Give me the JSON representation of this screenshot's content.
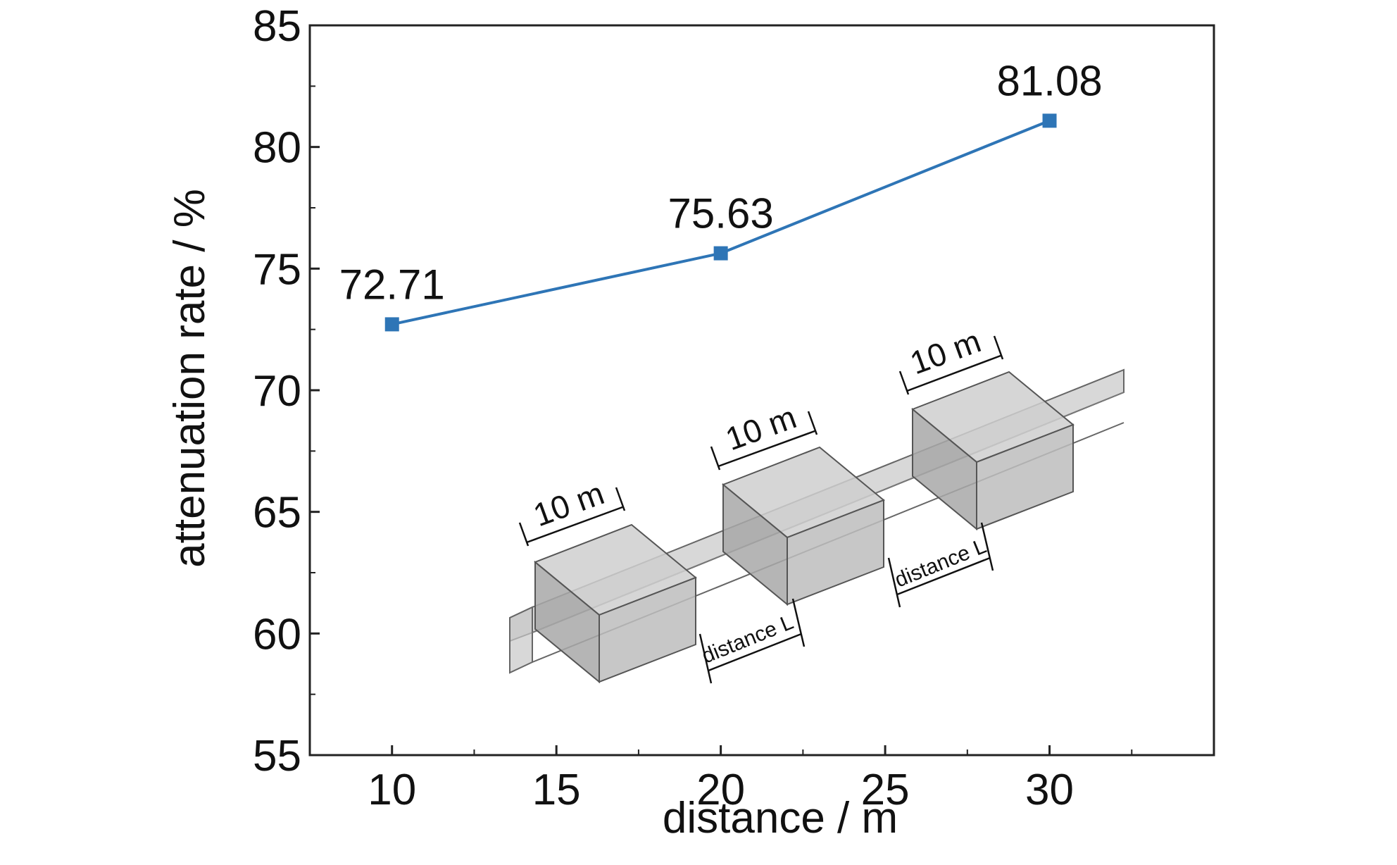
{
  "chart_data": {
    "type": "line",
    "xlabel": "distance / m",
    "ylabel": "attenuation rate / %",
    "xlim": [
      7.5,
      35
    ],
    "ylim": [
      55,
      85
    ],
    "x_ticks": [
      10,
      15,
      20,
      25,
      30
    ],
    "y_ticks": [
      55,
      60,
      65,
      70,
      75,
      80,
      85
    ],
    "grid": false,
    "series": [
      {
        "color": "#2e75b6",
        "marker": "square",
        "x": [
          10,
          20,
          30
        ],
        "y": [
          72.71,
          75.63,
          81.08
        ],
        "labels": [
          "72.71",
          "75.63",
          "81.08"
        ]
      }
    ],
    "inset": {
      "box_labels": [
        "10 m",
        "10 m",
        "10 m"
      ],
      "gap_labels": [
        "distance L",
        "distance L"
      ]
    }
  }
}
